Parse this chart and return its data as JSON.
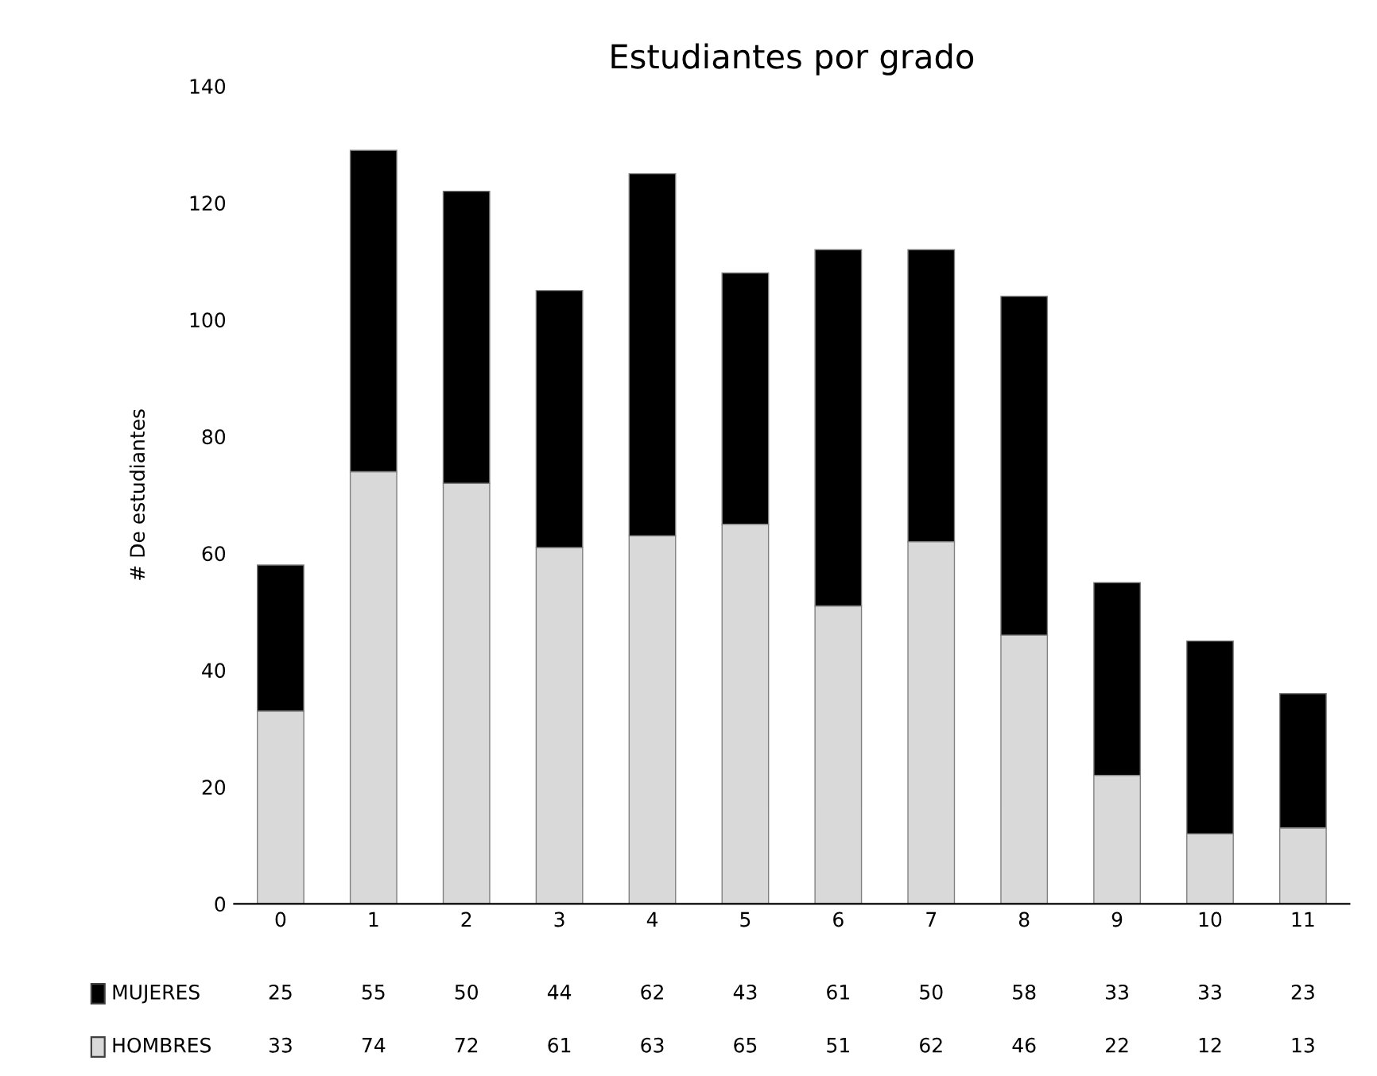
{
  "chart_data": {
    "type": "bar",
    "title": "Estudiantes por grado",
    "ylabel": "# De estudiantes",
    "stacked": true,
    "data_labels": true,
    "legend": "bottom",
    "categories": [
      "0",
      "1",
      "2",
      "3",
      "4",
      "5",
      "6",
      "7",
      "8",
      "9",
      "10",
      "11"
    ],
    "series": [
      {
        "name": "HOMBRES",
        "color": "#d9d9d9",
        "values": [
          33,
          74,
          72,
          61,
          63,
          65,
          51,
          62,
          46,
          22,
          12,
          13
        ]
      },
      {
        "name": "MUJERES",
        "color": "#000000",
        "values": [
          25,
          55,
          50,
          44,
          62,
          43,
          61,
          50,
          58,
          33,
          33,
          23
        ]
      }
    ],
    "ylim": [
      0,
      140
    ],
    "yticks": [
      0,
      20,
      40,
      60,
      80,
      100,
      120,
      140
    ]
  }
}
